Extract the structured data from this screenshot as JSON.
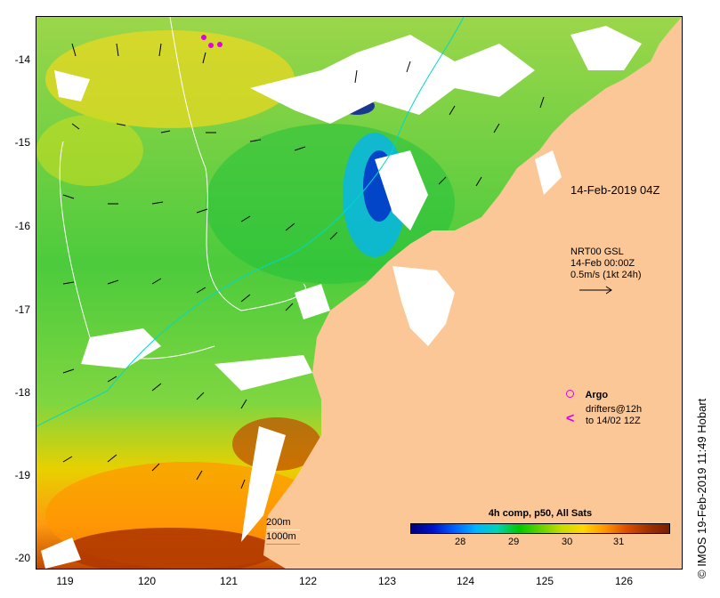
{
  "map": {
    "timestamp_label": "14-Feb-2019 04Z",
    "current_legend": {
      "line1": "NRT00 GSL",
      "line2": "14-Feb 00:00Z",
      "line3": "0.5m/s (1kt 24h)"
    },
    "argo_label": "Argo",
    "drifters_line1": "drifters@12h",
    "drifters_line2": "to 14/02 12Z",
    "isobath_200": "200m",
    "isobath_1000": "1000m",
    "colorbar": {
      "title": "4h comp, p50, All Sats",
      "ticks": [
        "28",
        "29",
        "30",
        "31"
      ],
      "colors": [
        "#00007a",
        "#0010c8",
        "#0060ff",
        "#00b4ff",
        "#00d2b4",
        "#00c800",
        "#64d200",
        "#c8dc00",
        "#ffd700",
        "#ff9600",
        "#dc5000",
        "#a03200",
        "#781e00"
      ]
    },
    "lat_labels": [
      "-14",
      "-15",
      "-16",
      "-17",
      "-18",
      "-19",
      "-20"
    ],
    "lon_labels": [
      "119",
      "120",
      "121",
      "122",
      "123",
      "124",
      "125",
      "126"
    ],
    "land_color": "#fbc797",
    "credit": "© IMOS 19-Feb-2019 11:49 Hobart"
  }
}
